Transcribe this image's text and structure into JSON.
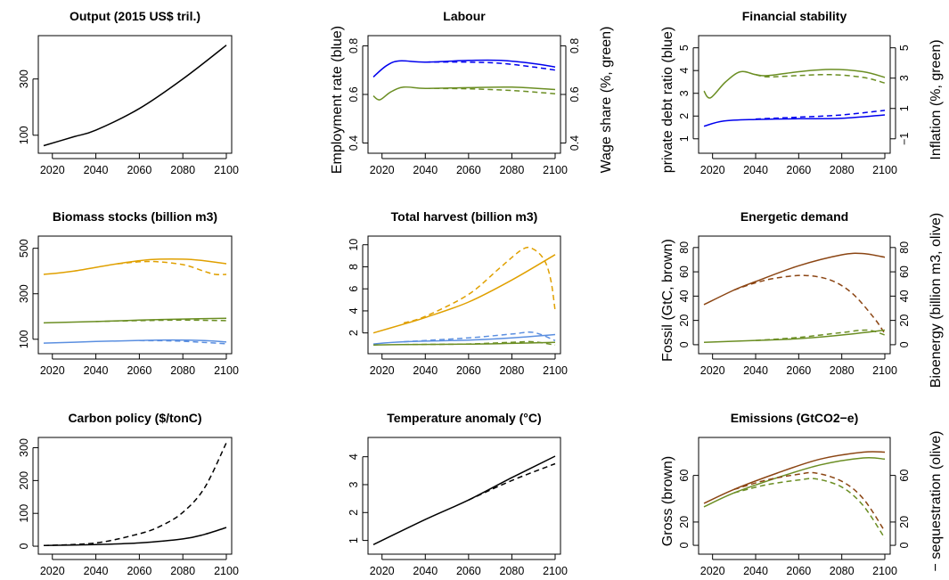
{
  "chart_data": [
    {
      "type": "line",
      "title": "Output (2015 US$ tril.)",
      "xlim": [
        2016,
        2100
      ],
      "ylim": [
        55,
        435
      ],
      "xticks": [
        2020,
        2040,
        2060,
        2080,
        2100
      ],
      "yticks": [
        100,
        300
      ],
      "series": [
        {
          "color": "#000000",
          "dash": false,
          "x": [
            2016,
            2030,
            2040,
            2060,
            2080,
            2100
          ],
          "y": [
            63,
            95,
            118,
            195,
            300,
            420
          ]
        }
      ]
    },
    {
      "type": "line",
      "title": "Labour",
      "ylabel": "Employment rate (blue)",
      "ylabel_right": "Wage share (%, green)",
      "xlim": [
        2016,
        2100
      ],
      "ylim": [
        0.38,
        0.82
      ],
      "xticks": [
        2020,
        2040,
        2060,
        2080,
        2100
      ],
      "yticks": [
        0.4,
        0.6,
        0.8
      ],
      "yticks_right": [
        0.4,
        0.6,
        0.8
      ],
      "series": [
        {
          "color": "#0000ee",
          "dash": false,
          "x": [
            2016,
            2022,
            2028,
            2040,
            2060,
            2075,
            2090,
            2100
          ],
          "y": [
            0.672,
            0.718,
            0.738,
            0.733,
            0.74,
            0.74,
            0.727,
            0.713
          ]
        },
        {
          "color": "#0000ee",
          "dash": true,
          "x": [
            2040,
            2060,
            2075,
            2090,
            2100
          ],
          "y": [
            0.733,
            0.733,
            0.728,
            0.713,
            0.7
          ]
        },
        {
          "color": "#6b8e23",
          "dash": false,
          "x": [
            2016,
            2019,
            2024,
            2030,
            2040,
            2060,
            2080,
            2100
          ],
          "y": [
            0.594,
            0.578,
            0.61,
            0.63,
            0.625,
            0.628,
            0.63,
            0.62
          ]
        },
        {
          "color": "#6b8e23",
          "dash": true,
          "x": [
            2040,
            2060,
            2080,
            2100
          ],
          "y": [
            0.625,
            0.623,
            0.616,
            0.603
          ]
        }
      ]
    },
    {
      "type": "line",
      "title": "Financial stability",
      "ylabel": "private debt ratio (blue)",
      "ylabel_right": "Inflation (%, green)",
      "xlim": [
        2016,
        2100
      ],
      "ylim": [
        0.6,
        5.3
      ],
      "xticks": [
        2020,
        2040,
        2060,
        2080,
        2100
      ],
      "yticks": [
        1,
        2,
        3,
        4,
        5
      ],
      "yticks_right": [
        -1,
        1,
        3,
        5
      ],
      "series": [
        {
          "color": "#0000ee",
          "dash": false,
          "x": [
            2016,
            2025,
            2040,
            2060,
            2080,
            2100
          ],
          "y": [
            1.55,
            1.78,
            1.85,
            1.88,
            1.9,
            2.05
          ]
        },
        {
          "color": "#0000ee",
          "dash": true,
          "x": [
            2040,
            2060,
            2080,
            2100
          ],
          "y": [
            1.87,
            1.95,
            2.05,
            2.25
          ]
        },
        {
          "color": "#6b8e23",
          "dash": false,
          "x": [
            2016,
            2019,
            2026,
            2033,
            2040,
            2046,
            2060,
            2075,
            2090,
            2100
          ],
          "y": [
            3.1,
            2.8,
            3.5,
            3.95,
            3.82,
            3.78,
            3.95,
            4.05,
            3.95,
            3.7
          ]
        },
        {
          "color": "#6b8e23",
          "dash": true,
          "x": [
            2040,
            2046,
            2060,
            2075,
            2090,
            2100
          ],
          "y": [
            3.82,
            3.72,
            3.78,
            3.82,
            3.7,
            3.45
          ]
        }
      ]
    },
    {
      "type": "line",
      "title": "Biomass stocks (billion m3)",
      "xlim": [
        2016,
        2100
      ],
      "ylim": [
        60,
        530
      ],
      "xticks": [
        2020,
        2040,
        2060,
        2080,
        2100
      ],
      "yticks": [
        100,
        300,
        500
      ],
      "series": [
        {
          "color": "#e0a000",
          "dash": false,
          "x": [
            2016,
            2030,
            2050,
            2065,
            2080,
            2090,
            2100
          ],
          "y": [
            385,
            400,
            432,
            450,
            452,
            445,
            432
          ]
        },
        {
          "color": "#e0a000",
          "dash": true,
          "x": [
            2050,
            2065,
            2080,
            2090,
            2095,
            2100
          ],
          "y": [
            432,
            442,
            428,
            398,
            385,
            385
          ]
        },
        {
          "color": "#6b8e23",
          "dash": false,
          "x": [
            2016,
            2040,
            2060,
            2080,
            2100
          ],
          "y": [
            172,
            178,
            184,
            189,
            192
          ]
        },
        {
          "color": "#6b8e23",
          "dash": true,
          "x": [
            2040,
            2060,
            2080,
            2100
          ],
          "y": [
            178,
            182,
            184,
            182
          ]
        },
        {
          "color": "#5b8fe0",
          "dash": false,
          "x": [
            2016,
            2040,
            2060,
            2075,
            2090,
            2100
          ],
          "y": [
            83,
            90,
            95,
            97,
            94,
            88
          ]
        },
        {
          "color": "#5b8fe0",
          "dash": true,
          "x": [
            2060,
            2075,
            2090,
            2100
          ],
          "y": [
            94,
            93,
            86,
            80
          ]
        }
      ]
    },
    {
      "type": "line",
      "title": "Total harvest (billion m3)",
      "xlim": [
        2016,
        2100
      ],
      "ylim": [
        0.6,
        10.3
      ],
      "xticks": [
        2020,
        2040,
        2060,
        2080,
        2100
      ],
      "yticks": [
        2,
        4,
        6,
        8,
        10
      ],
      "series": [
        {
          "color": "#e0a000",
          "dash": false,
          "x": [
            2016,
            2030,
            2040,
            2060,
            2080,
            2100
          ],
          "y": [
            2.0,
            2.8,
            3.4,
            4.8,
            6.8,
            9.1
          ]
        },
        {
          "color": "#e0a000",
          "dash": true,
          "x": [
            2030,
            2040,
            2060,
            2075,
            2085,
            2090,
            2095,
            2098,
            2100
          ],
          "y": [
            2.9,
            3.5,
            5.5,
            8.0,
            9.6,
            9.6,
            8.6,
            6.8,
            4.0
          ]
        },
        {
          "color": "#5b8fe0",
          "dash": false,
          "x": [
            2016,
            2030,
            2060,
            2080,
            2100
          ],
          "y": [
            1.0,
            1.2,
            1.35,
            1.55,
            1.85
          ]
        },
        {
          "color": "#5b8fe0",
          "dash": true,
          "x": [
            2030,
            2060,
            2080,
            2090,
            2100
          ],
          "y": [
            1.2,
            1.55,
            1.9,
            2.05,
            1.3
          ]
        },
        {
          "color": "#6b8e23",
          "dash": false,
          "x": [
            2016,
            2030,
            2060,
            2080,
            2100
          ],
          "y": [
            0.9,
            0.95,
            0.98,
            1.05,
            1.15
          ]
        },
        {
          "color": "#6b8e23",
          "dash": true,
          "x": [
            2030,
            2060,
            2080,
            2090,
            2100
          ],
          "y": [
            0.95,
            1.0,
            1.15,
            1.2,
            0.9
          ]
        }
      ]
    },
    {
      "type": "line",
      "title": "Energetic demand",
      "ylabel": "Fossil (GtC, brown)",
      "ylabel_right": "Bioenergy (billion m3, olive)",
      "xlim": [
        2016,
        2100
      ],
      "ylim": [
        -3,
        85
      ],
      "xticks": [
        2020,
        2040,
        2060,
        2080,
        2100
      ],
      "yticks": [
        0,
        20,
        40,
        60,
        80
      ],
      "yticks_right": [
        0,
        20,
        40,
        60,
        80
      ],
      "series": [
        {
          "color": "#8b4513",
          "dash": false,
          "x": [
            2016,
            2030,
            2040,
            2060,
            2080,
            2090,
            2100
          ],
          "y": [
            33,
            45,
            52,
            65,
            74,
            75,
            72
          ]
        },
        {
          "color": "#8b4513",
          "dash": true,
          "x": [
            2030,
            2040,
            2050,
            2063,
            2075,
            2085,
            2095,
            2100
          ],
          "y": [
            45,
            51,
            55,
            57,
            53,
            42,
            22,
            9
          ]
        },
        {
          "color": "#6b8e23",
          "dash": false,
          "x": [
            2016,
            2040,
            2060,
            2080,
            2100
          ],
          "y": [
            2,
            3.5,
            5,
            8,
            12
          ]
        },
        {
          "color": "#6b8e23",
          "dash": true,
          "x": [
            2040,
            2060,
            2080,
            2092,
            2100
          ],
          "y": [
            3.5,
            6,
            10,
            12,
            8
          ]
        }
      ]
    },
    {
      "type": "line",
      "title": "Carbon policy ($/tonC)",
      "xlim": [
        2016,
        2100
      ],
      "ylim": [
        -8,
        315
      ],
      "xticks": [
        2020,
        2040,
        2060,
        2080,
        2100
      ],
      "yticks": [
        0,
        100,
        200,
        300
      ],
      "series": [
        {
          "color": "#000000",
          "dash": false,
          "x": [
            2016,
            2040,
            2060,
            2080,
            2090,
            2100
          ],
          "y": [
            2,
            5,
            10,
            22,
            36,
            57
          ]
        },
        {
          "color": "#000000",
          "dash": true,
          "x": [
            2016,
            2040,
            2060,
            2070,
            2080,
            2090,
            2100
          ],
          "y": [
            2,
            10,
            38,
            62,
            103,
            178,
            315
          ]
        }
      ]
    },
    {
      "type": "line",
      "title": "Temperature anomaly (°C)",
      "xlim": [
        2016,
        2100
      ],
      "ylim": [
        0.7,
        4.5
      ],
      "xticks": [
        2020,
        2040,
        2060,
        2080,
        2100
      ],
      "yticks": [
        1,
        2,
        3,
        4
      ],
      "series": [
        {
          "color": "#000000",
          "dash": false,
          "x": [
            2016,
            2040,
            2060,
            2080,
            2100
          ],
          "y": [
            0.85,
            1.75,
            2.45,
            3.25,
            4.02
          ]
        },
        {
          "color": "#000000",
          "dash": true,
          "x": [
            2060,
            2080,
            2100
          ],
          "y": [
            2.45,
            3.15,
            3.75
          ]
        }
      ]
    },
    {
      "type": "line",
      "title": "Emissions (GtCO2−e)",
      "ylabel": "Gross (brown)",
      "ylabel_right": "− sequestration (olive)",
      "xlim": [
        2016,
        2100
      ],
      "ylim": [
        -3,
        88
      ],
      "xticks": [
        2020,
        2040,
        2060,
        2080,
        2100
      ],
      "yticks": [
        0,
        20,
        60
      ],
      "yticks_right": [
        0,
        20,
        60
      ],
      "series": [
        {
          "color": "#8b4513",
          "dash": false,
          "x": [
            2016,
            2030,
            2050,
            2070,
            2090,
            2100
          ],
          "y": [
            36,
            48,
            62,
            74,
            80,
            80
          ]
        },
        {
          "color": "#6b8e23",
          "dash": false,
          "x": [
            2016,
            2030,
            2050,
            2070,
            2090,
            2100
          ],
          "y": [
            33,
            45,
            58,
            69,
            75,
            74
          ]
        },
        {
          "color": "#8b4513",
          "dash": true,
          "x": [
            2030,
            2045,
            2060,
            2068,
            2080,
            2090,
            2100
          ],
          "y": [
            48,
            56,
            61,
            62,
            55,
            40,
            12
          ]
        },
        {
          "color": "#6b8e23",
          "dash": true,
          "x": [
            2030,
            2045,
            2060,
            2068,
            2080,
            2090,
            2100
          ],
          "y": [
            45,
            52,
            56,
            57,
            50,
            34,
            6
          ]
        }
      ]
    }
  ]
}
